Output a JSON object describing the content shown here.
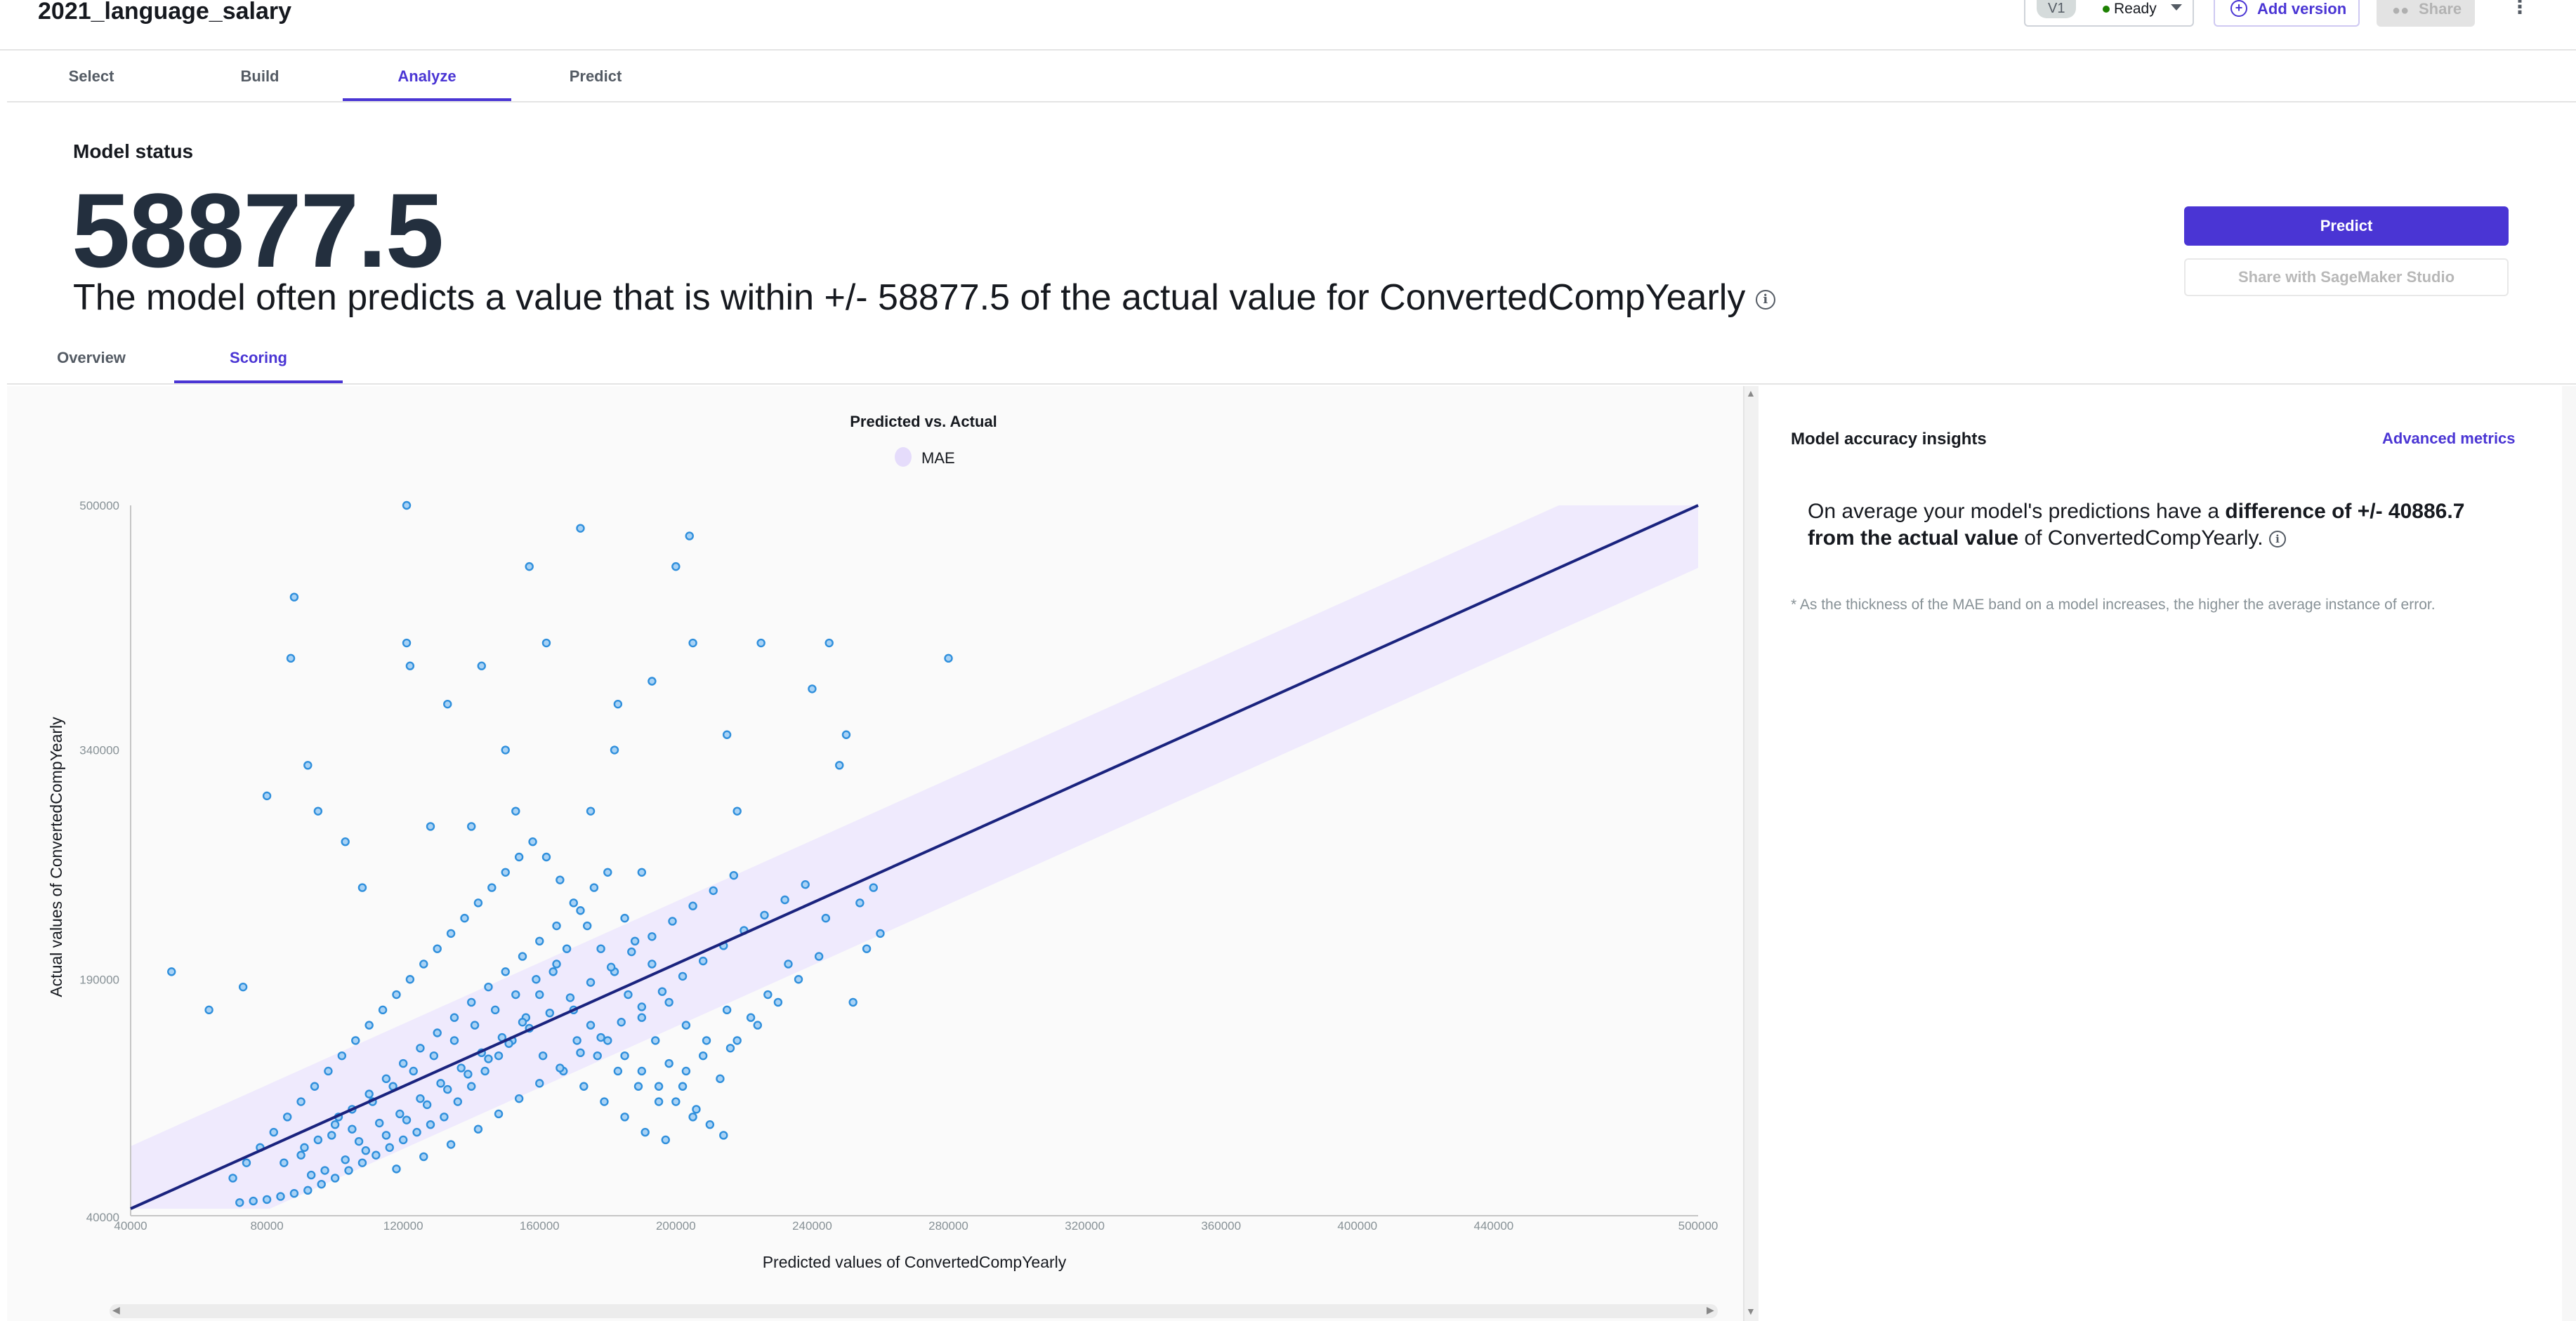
{
  "header": {
    "title": "2021_language_salary",
    "version": "V1",
    "status": "Ready",
    "add_version_label": "Add version",
    "share_label": "Share",
    "icons": {
      "add": "plus-circle-icon",
      "share": "people-icon",
      "menu": "kebab-icon",
      "caret": "caret-down-icon"
    },
    "status_color": "#1d8102"
  },
  "main_tabs": [
    {
      "label": "Select"
    },
    {
      "label": "Build"
    },
    {
      "label": "Analyze",
      "active": true
    },
    {
      "label": "Predict"
    }
  ],
  "model_status": {
    "label": "Model status",
    "value": "58877.5",
    "description": "The model often predicts a value that is within +/- 58877.5 of the actual value for ConvertedCompYearly"
  },
  "actions": {
    "predict_label": "Predict",
    "studio_label": "Share with SageMaker Studio"
  },
  "sub_tabs": [
    {
      "label": "Overview"
    },
    {
      "label": "Scoring",
      "active": true
    }
  ],
  "insights": {
    "title": "Model accuracy insights",
    "advanced_label": "Advanced metrics",
    "text_prefix": "On average your model's predictions have a ",
    "text_bold": "difference of +/- 40886.7 from the actual value",
    "text_suffix": " of ConvertedCompYearly.",
    "note": "* As the thickness of the MAE band on a model increases, the higher the average instance of error."
  },
  "accent_color": "#4a35d4",
  "chart_data": {
    "type": "scatter",
    "title": "Predicted vs. Actual",
    "legend": [
      {
        "name": "MAE",
        "color": "#e5dcfb"
      }
    ],
    "legend_placement": "top-center",
    "xlabel": "Predicted values of ConvertedCompYearly",
    "ylabel": "Actual values of ConvertedCompYearly",
    "xlim": [
      40000,
      500000
    ],
    "ylim": [
      40000,
      500000
    ],
    "x_ticks": [
      40000,
      80000,
      120000,
      160000,
      200000,
      240000,
      280000,
      320000,
      360000,
      400000,
      440000,
      500000
    ],
    "y_ticks": [
      40000,
      190000,
      340000,
      500000
    ],
    "mae": 40886.7,
    "reference_line": {
      "from": [
        40000,
        40000
      ],
      "to": [
        500000,
        500000
      ],
      "color": "#1a237e"
    },
    "point_color": "#2f8fdc",
    "grid": false,
    "points": [
      [
        52000,
        195000
      ],
      [
        63000,
        170000
      ],
      [
        73000,
        185000
      ],
      [
        88000,
        440000
      ],
      [
        87000,
        400000
      ],
      [
        92000,
        330000
      ],
      [
        95000,
        300000
      ],
      [
        80000,
        310000
      ],
      [
        103000,
        280000
      ],
      [
        108000,
        250000
      ],
      [
        121000,
        410000
      ],
      [
        121000,
        500000
      ],
      [
        122000,
        395000
      ],
      [
        128000,
        290000
      ],
      [
        133000,
        370000
      ],
      [
        143000,
        395000
      ],
      [
        140000,
        290000
      ],
      [
        150000,
        340000
      ],
      [
        153000,
        300000
      ],
      [
        162000,
        410000
      ],
      [
        157000,
        460000
      ],
      [
        172000,
        485000
      ],
      [
        183000,
        370000
      ],
      [
        182000,
        340000
      ],
      [
        175000,
        300000
      ],
      [
        190000,
        260000
      ],
      [
        193000,
        385000
      ],
      [
        200000,
        460000
      ],
      [
        204000,
        480000
      ],
      [
        205000,
        410000
      ],
      [
        215000,
        350000
      ],
      [
        218000,
        300000
      ],
      [
        225000,
        410000
      ],
      [
        240000,
        380000
      ],
      [
        248000,
        330000
      ],
      [
        250000,
        350000
      ],
      [
        245000,
        410000
      ],
      [
        280000,
        400000
      ],
      [
        258000,
        250000
      ],
      [
        254000,
        240000
      ],
      [
        260000,
        220000
      ],
      [
        256000,
        210000
      ],
      [
        252000,
        175000
      ],
      [
        233000,
        200000
      ],
      [
        227000,
        180000
      ],
      [
        222000,
        165000
      ],
      [
        218000,
        150000
      ],
      [
        213000,
        125000
      ],
      [
        208000,
        140000
      ],
      [
        203000,
        160000
      ],
      [
        198000,
        175000
      ],
      [
        193000,
        200000
      ],
      [
        188000,
        215000
      ],
      [
        185000,
        230000
      ],
      [
        180000,
        260000
      ],
      [
        176000,
        250000
      ],
      [
        172000,
        235000
      ],
      [
        168000,
        210000
      ],
      [
        164000,
        195000
      ],
      [
        160000,
        180000
      ],
      [
        156000,
        165000
      ],
      [
        152000,
        150000
      ],
      [
        148000,
        140000
      ],
      [
        144000,
        130000
      ],
      [
        140000,
        120000
      ],
      [
        136000,
        110000
      ],
      [
        132000,
        100000
      ],
      [
        128000,
        95000
      ],
      [
        124000,
        90000
      ],
      [
        120000,
        85000
      ],
      [
        116000,
        80000
      ],
      [
        112000,
        75000
      ],
      [
        108000,
        70000
      ],
      [
        104000,
        65000
      ],
      [
        100000,
        60000
      ],
      [
        96000,
        56000
      ],
      [
        92000,
        52000
      ],
      [
        88000,
        50000
      ],
      [
        84000,
        48000
      ],
      [
        80000,
        46000
      ],
      [
        76000,
        45000
      ],
      [
        72000,
        44000
      ],
      [
        70000,
        60000
      ],
      [
        74000,
        70000
      ],
      [
        78000,
        80000
      ],
      [
        82000,
        90000
      ],
      [
        86000,
        100000
      ],
      [
        90000,
        110000
      ],
      [
        94000,
        120000
      ],
      [
        98000,
        130000
      ],
      [
        102000,
        140000
      ],
      [
        106000,
        150000
      ],
      [
        110000,
        160000
      ],
      [
        114000,
        170000
      ],
      [
        118000,
        180000
      ],
      [
        122000,
        190000
      ],
      [
        126000,
        200000
      ],
      [
        130000,
        210000
      ],
      [
        134000,
        220000
      ],
      [
        138000,
        230000
      ],
      [
        142000,
        240000
      ],
      [
        146000,
        250000
      ],
      [
        150000,
        260000
      ],
      [
        154000,
        270000
      ],
      [
        158000,
        280000
      ],
      [
        162000,
        270000
      ],
      [
        166000,
        255000
      ],
      [
        170000,
        240000
      ],
      [
        174000,
        225000
      ],
      [
        178000,
        210000
      ],
      [
        182000,
        195000
      ],
      [
        186000,
        180000
      ],
      [
        190000,
        165000
      ],
      [
        194000,
        150000
      ],
      [
        198000,
        135000
      ],
      [
        202000,
        120000
      ],
      [
        206000,
        105000
      ],
      [
        210000,
        95000
      ],
      [
        214000,
        88000
      ],
      [
        90000,
        75000
      ],
      [
        95000,
        85000
      ],
      [
        100000,
        95000
      ],
      [
        105000,
        105000
      ],
      [
        110000,
        115000
      ],
      [
        115000,
        125000
      ],
      [
        120000,
        135000
      ],
      [
        125000,
        145000
      ],
      [
        130000,
        155000
      ],
      [
        135000,
        165000
      ],
      [
        140000,
        175000
      ],
      [
        145000,
        185000
      ],
      [
        150000,
        195000
      ],
      [
        155000,
        205000
      ],
      [
        160000,
        215000
      ],
      [
        165000,
        225000
      ],
      [
        170000,
        170000
      ],
      [
        175000,
        160000
      ],
      [
        180000,
        150000
      ],
      [
        185000,
        140000
      ],
      [
        190000,
        130000
      ],
      [
        195000,
        120000
      ],
      [
        200000,
        110000
      ],
      [
        205000,
        100000
      ],
      [
        97000,
        65000
      ],
      [
        103000,
        72000
      ],
      [
        109000,
        78000
      ],
      [
        115000,
        88000
      ],
      [
        121000,
        98000
      ],
      [
        127000,
        108000
      ],
      [
        133000,
        118000
      ],
      [
        139000,
        128000
      ],
      [
        145000,
        138000
      ],
      [
        151000,
        148000
      ],
      [
        157000,
        158000
      ],
      [
        163000,
        168000
      ],
      [
        169000,
        178000
      ],
      [
        175000,
        188000
      ],
      [
        181000,
        198000
      ],
      [
        187000,
        208000
      ],
      [
        193000,
        218000
      ],
      [
        199000,
        228000
      ],
      [
        205000,
        238000
      ],
      [
        211000,
        248000
      ],
      [
        217000,
        258000
      ],
      [
        101000,
        100000
      ],
      [
        111000,
        110000
      ],
      [
        117000,
        120000
      ],
      [
        123000,
        130000
      ],
      [
        129000,
        140000
      ],
      [
        135000,
        150000
      ],
      [
        141000,
        160000
      ],
      [
        147000,
        170000
      ],
      [
        153000,
        180000
      ],
      [
        159000,
        190000
      ],
      [
        165000,
        200000
      ],
      [
        171000,
        150000
      ],
      [
        177000,
        140000
      ],
      [
        183000,
        130000
      ],
      [
        189000,
        120000
      ],
      [
        195000,
        110000
      ],
      [
        99000,
        88000
      ],
      [
        105000,
        92000
      ],
      [
        113000,
        96000
      ],
      [
        119000,
        102000
      ],
      [
        125000,
        112000
      ],
      [
        131000,
        122000
      ],
      [
        137000,
        132000
      ],
      [
        143000,
        142000
      ],
      [
        149000,
        152000
      ],
      [
        155000,
        162000
      ],
      [
        161000,
        140000
      ],
      [
        167000,
        130000
      ],
      [
        173000,
        120000
      ],
      [
        179000,
        110000
      ],
      [
        185000,
        100000
      ],
      [
        191000,
        90000
      ],
      [
        197000,
        85000
      ],
      [
        203000,
        130000
      ],
      [
        209000,
        150000
      ],
      [
        215000,
        170000
      ],
      [
        85000,
        70000
      ],
      [
        91000,
        80000
      ],
      [
        93000,
        62000
      ],
      [
        107000,
        84000
      ],
      [
        118000,
        66000
      ],
      [
        126000,
        74000
      ],
      [
        134000,
        82000
      ],
      [
        142000,
        92000
      ],
      [
        148000,
        102000
      ],
      [
        154000,
        112000
      ],
      [
        160000,
        122000
      ],
      [
        166000,
        132000
      ],
      [
        172000,
        142000
      ],
      [
        178000,
        152000
      ],
      [
        184000,
        162000
      ],
      [
        190000,
        172000
      ],
      [
        196000,
        182000
      ],
      [
        202000,
        192000
      ],
      [
        208000,
        202000
      ],
      [
        214000,
        212000
      ],
      [
        220000,
        222000
      ],
      [
        226000,
        232000
      ],
      [
        232000,
        242000
      ],
      [
        238000,
        252000
      ],
      [
        244000,
        230000
      ],
      [
        242000,
        205000
      ],
      [
        236000,
        190000
      ],
      [
        230000,
        175000
      ],
      [
        224000,
        160000
      ],
      [
        216000,
        145000
      ]
    ]
  }
}
